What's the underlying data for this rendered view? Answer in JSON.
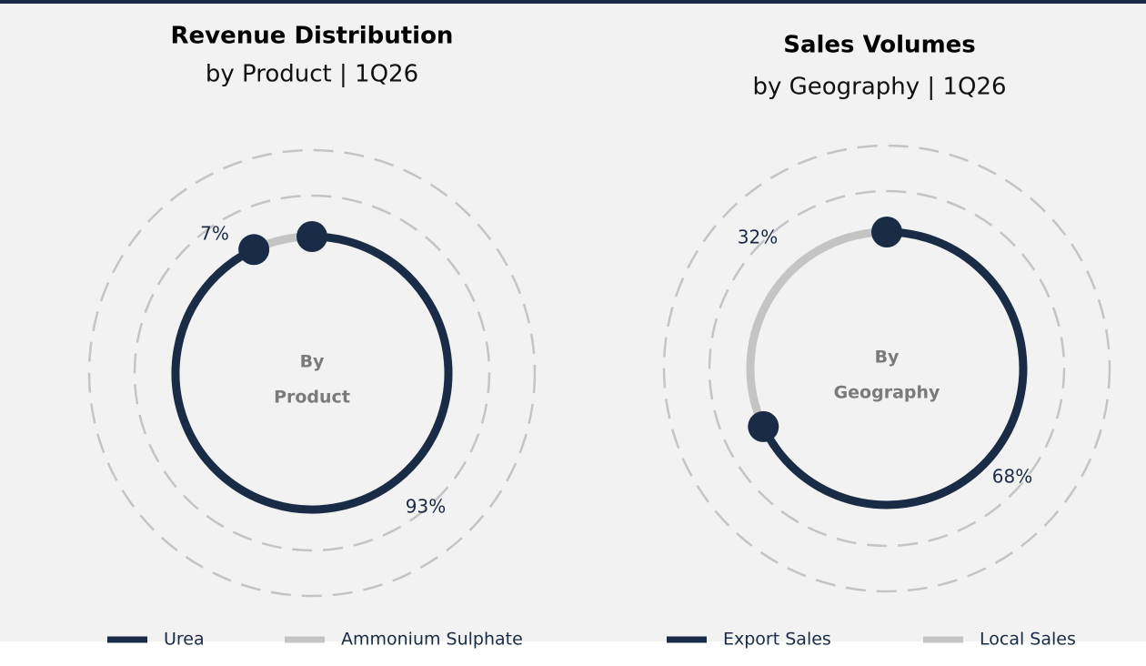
{
  "chart_data": [
    {
      "type": "pie",
      "title": "Revenue Distribution",
      "subtitle": "by Product | 1Q26",
      "center_label": [
        "By",
        "Product"
      ],
      "categories": [
        "Urea",
        "Ammonium Sulphate"
      ],
      "values": [
        93,
        7
      ],
      "value_labels": [
        "93%",
        "7%"
      ],
      "colors": [
        "#1a2b45",
        "#c4c4c4"
      ]
    },
    {
      "type": "pie",
      "title": "Sales Volumes",
      "subtitle": "by Geography | 1Q26",
      "center_label": [
        "By",
        "Geography"
      ],
      "categories": [
        "Export Sales",
        "Local Sales"
      ],
      "values": [
        68,
        32
      ],
      "value_labels": [
        "68%",
        "32%"
      ],
      "colors": [
        "#1a2b45",
        "#c4c4c4"
      ]
    }
  ]
}
